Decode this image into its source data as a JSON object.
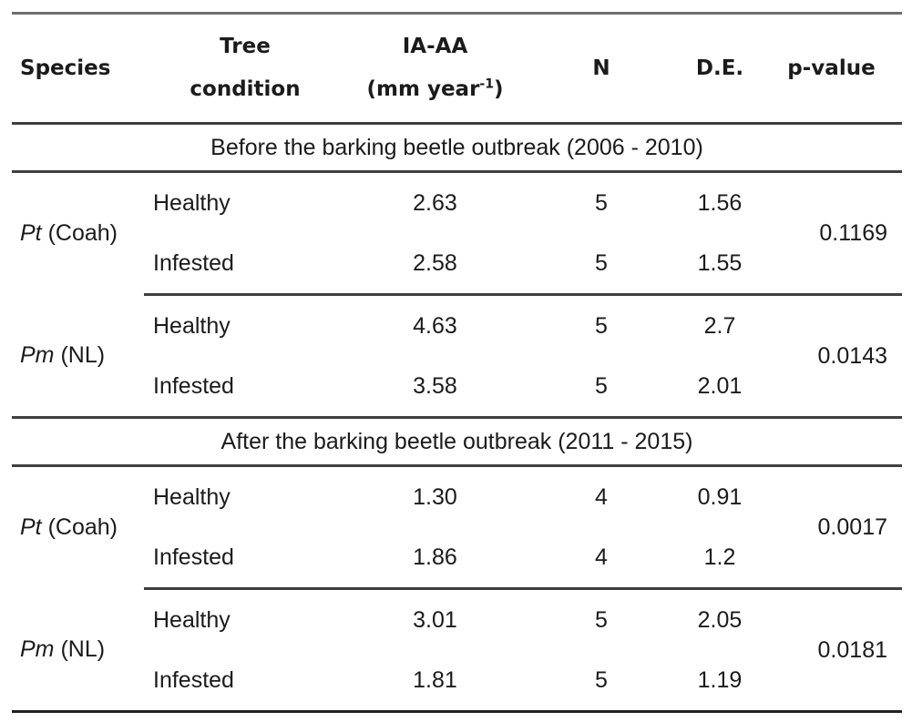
{
  "table": {
    "columns": {
      "species": "Species",
      "condition_line1": "Tree",
      "condition_line2": "condition",
      "iaaa_line1": "IA-AA",
      "iaaa_unit_prefix": "(mm year",
      "iaaa_unit_sup": "-1",
      "iaaa_unit_suffix": ")",
      "n": "N",
      "de": "D.E.",
      "pvalue": "p-value"
    },
    "sections": [
      {
        "title": "Before the barking beetle outbreak (2006 - 2010)",
        "blocks": [
          {
            "species_italic": "Pt",
            "species_rest": " (Coah)",
            "pvalue": "0.1169",
            "rows": [
              {
                "condition": "Healthy",
                "iaaa": "2.63",
                "n": "5",
                "de": "1.56"
              },
              {
                "condition": "Infested",
                "iaaa": "2.58",
                "n": "5",
                "de": "1.55"
              }
            ]
          },
          {
            "species_italic": "Pm",
            "species_rest": " (NL)",
            "pvalue": "0.0143",
            "rows": [
              {
                "condition": "Healthy",
                "iaaa": "4.63",
                "n": "5",
                "de": "2.7"
              },
              {
                "condition": "Infested",
                "iaaa": "3.58",
                "n": "5",
                "de": "2.01"
              }
            ]
          }
        ]
      },
      {
        "title": "After the barking beetle outbreak (2011 - 2015)",
        "blocks": [
          {
            "species_italic": "Pt",
            "species_rest": " (Coah)",
            "pvalue": "0.0017",
            "rows": [
              {
                "condition": "Healthy",
                "iaaa": "1.30",
                "n": "4",
                "de": "0.91"
              },
              {
                "condition": "Infested",
                "iaaa": "1.86",
                "n": "4",
                "de": "1.2"
              }
            ]
          },
          {
            "species_italic": "Pm",
            "species_rest": " (NL)",
            "pvalue": "0.0181",
            "rows": [
              {
                "condition": "Healthy",
                "iaaa": "3.01",
                "n": "5",
                "de": "2.05"
              },
              {
                "condition": "Infested",
                "iaaa": "1.81",
                "n": "5",
                "de": "1.19"
              }
            ]
          }
        ]
      }
    ]
  },
  "colors": {
    "background": "#ffffff",
    "text": "#1b1b1b",
    "rule": "#3f3f3f"
  }
}
